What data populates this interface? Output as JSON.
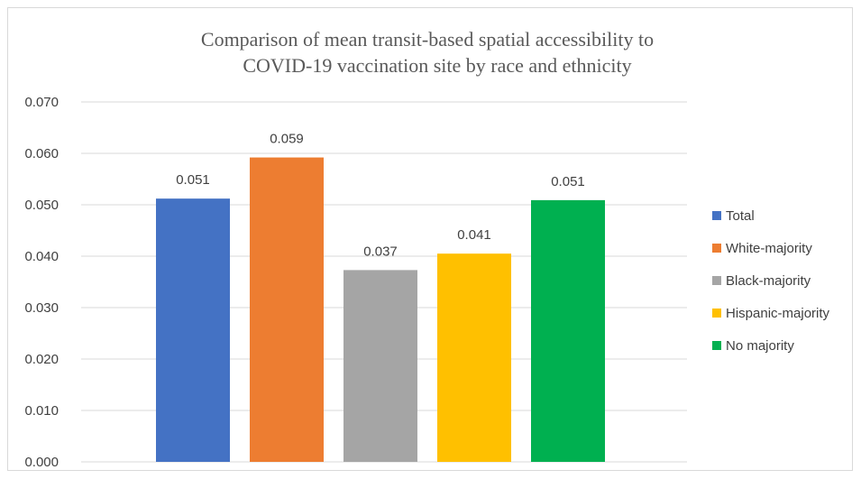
{
  "chart_data": {
    "type": "bar",
    "title": "Comparison of mean transit-based spatial accessibility to COVID-19 vaccination site by race and ethnicity",
    "title_lines": [
      "Comparison of mean transit-based spatial accessibility to",
      "COVID-19 vaccination site by race and ethnicity"
    ],
    "xlabel": "",
    "ylabel": "",
    "categories": [
      "Total",
      "White-majority",
      "Black-majority",
      "Hispanic-majority",
      "No majority"
    ],
    "values": [
      0.0512,
      0.0592,
      0.0373,
      0.0405,
      0.0509
    ],
    "data_labels": [
      "0.051",
      "0.059",
      "0.037",
      "0.041",
      "0.051"
    ],
    "colors": [
      "#4472C4",
      "#ED7D31",
      "#A5A5A5",
      "#FFC000",
      "#00B050"
    ],
    "ylim": [
      0,
      0.07
    ],
    "yticks": [
      0,
      0.01,
      0.02,
      0.03,
      0.04,
      0.05,
      0.06,
      0.07
    ],
    "ytick_labels": [
      "0.000",
      "0.010",
      "0.020",
      "0.030",
      "0.040",
      "0.050",
      "0.060",
      "0.070"
    ],
    "grid": true,
    "legend_position": "right",
    "legend": [
      "Total",
      "White-majority",
      "Black-majority",
      "Hispanic-majority",
      "No majority"
    ]
  }
}
